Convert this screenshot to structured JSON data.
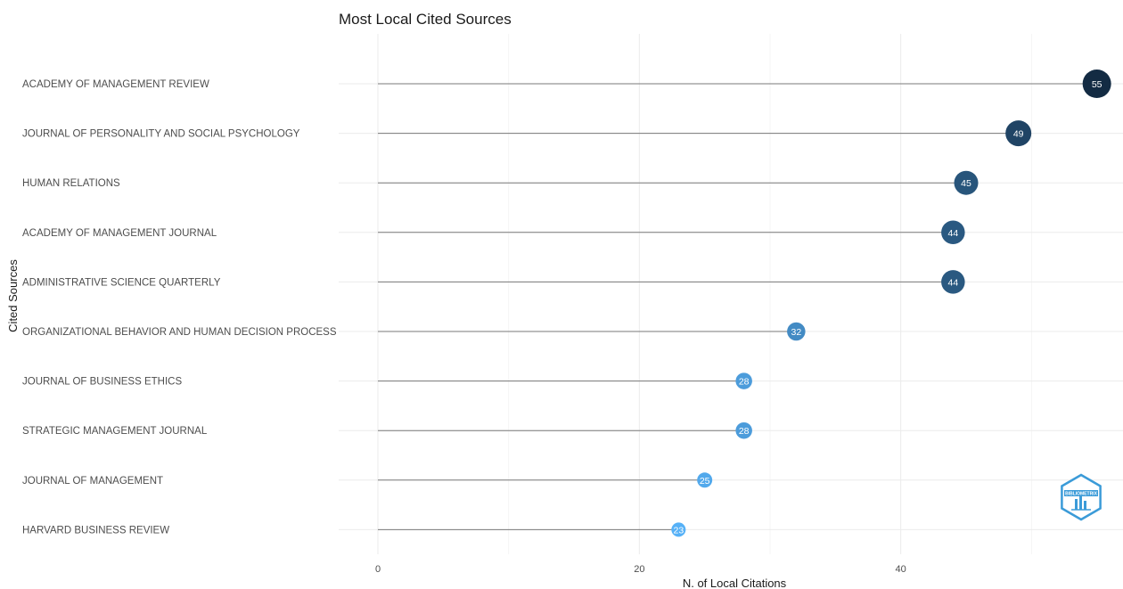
{
  "chart_data": {
    "type": "scatter",
    "style": "lollipop",
    "title": "Most Local Cited Sources",
    "xlabel": "N. of Local Citations",
    "ylabel": "Cited Sources",
    "xlim": [
      -3,
      57
    ],
    "xticks": [
      0,
      20,
      40
    ],
    "grid": true,
    "categories": [
      "ACADEMY OF MANAGEMENT REVIEW",
      "JOURNAL OF PERSONALITY AND SOCIAL PSYCHOLOGY",
      "HUMAN RELATIONS",
      "ACADEMY OF MANAGEMENT JOURNAL",
      "ADMINISTRATIVE SCIENCE QUARTERLY",
      "ORGANIZATIONAL BEHAVIOR AND HUMAN DECISION PROCESS",
      "JOURNAL OF BUSINESS ETHICS",
      "STRATEGIC MANAGEMENT JOURNAL",
      "JOURNAL OF MANAGEMENT",
      "HARVARD BUSINESS REVIEW"
    ],
    "values": [
      55,
      49,
      45,
      44,
      44,
      32,
      28,
      28,
      25,
      23
    ],
    "color_scale": {
      "low": "#56B1F7",
      "high": "#132B43"
    }
  },
  "logo": {
    "name": "bibliometrix-logo",
    "text": "BIBLIOMETRIX",
    "color": "#3b9bd8"
  }
}
